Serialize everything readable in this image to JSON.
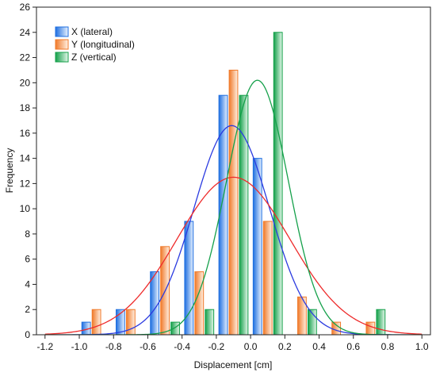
{
  "chart_data": {
    "type": "bar",
    "xlabel": "Displacement [cm]",
    "ylabel": "Frequency",
    "xlim": [
      -1.25,
      1.05
    ],
    "ylim": [
      0,
      26
    ],
    "x_ticks": [
      -1.2,
      -1.0,
      -0.8,
      -0.6,
      -0.4,
      -0.2,
      0.0,
      0.2,
      0.4,
      0.6,
      0.8,
      1.0
    ],
    "x_tick_labels": [
      "-1.2",
      "-1.0",
      "-0.8",
      "-0.6",
      "-0.4",
      "-0.2",
      "0.0",
      "0.2",
      "0.4",
      "0.6",
      "0.8",
      "1.0"
    ],
    "y_ticks": [
      0,
      2,
      4,
      6,
      8,
      10,
      12,
      14,
      16,
      18,
      20,
      22,
      24,
      26
    ],
    "grid": false,
    "legend_position": "top-left",
    "bin_centers": [
      -0.9,
      -0.7,
      -0.5,
      -0.3,
      -0.1,
      0.1,
      0.3,
      0.5,
      0.7
    ],
    "series": [
      {
        "name": "X (lateral)",
        "color": "#1f6fe0",
        "values": [
          1,
          2,
          5,
          9,
          19,
          14,
          0,
          0,
          0
        ],
        "normal_fit": {
          "mean": -0.11,
          "sd": 0.22,
          "peak": 16.6
        }
      },
      {
        "name": "Y (longitudinal)",
        "color": "#f07a2a",
        "values": [
          2,
          2,
          7,
          5,
          21,
          9,
          3,
          1,
          1
        ],
        "normal_fit": {
          "mean": -0.1,
          "sd": 0.33,
          "peak": 12.5
        }
      },
      {
        "name": "Z (vertical)",
        "color": "#14a04a",
        "values": [
          0,
          0,
          1,
          2,
          19,
          24,
          2,
          0,
          2
        ],
        "normal_fit": {
          "mean": 0.04,
          "sd": 0.18,
          "peak": 20.2
        }
      }
    ]
  }
}
